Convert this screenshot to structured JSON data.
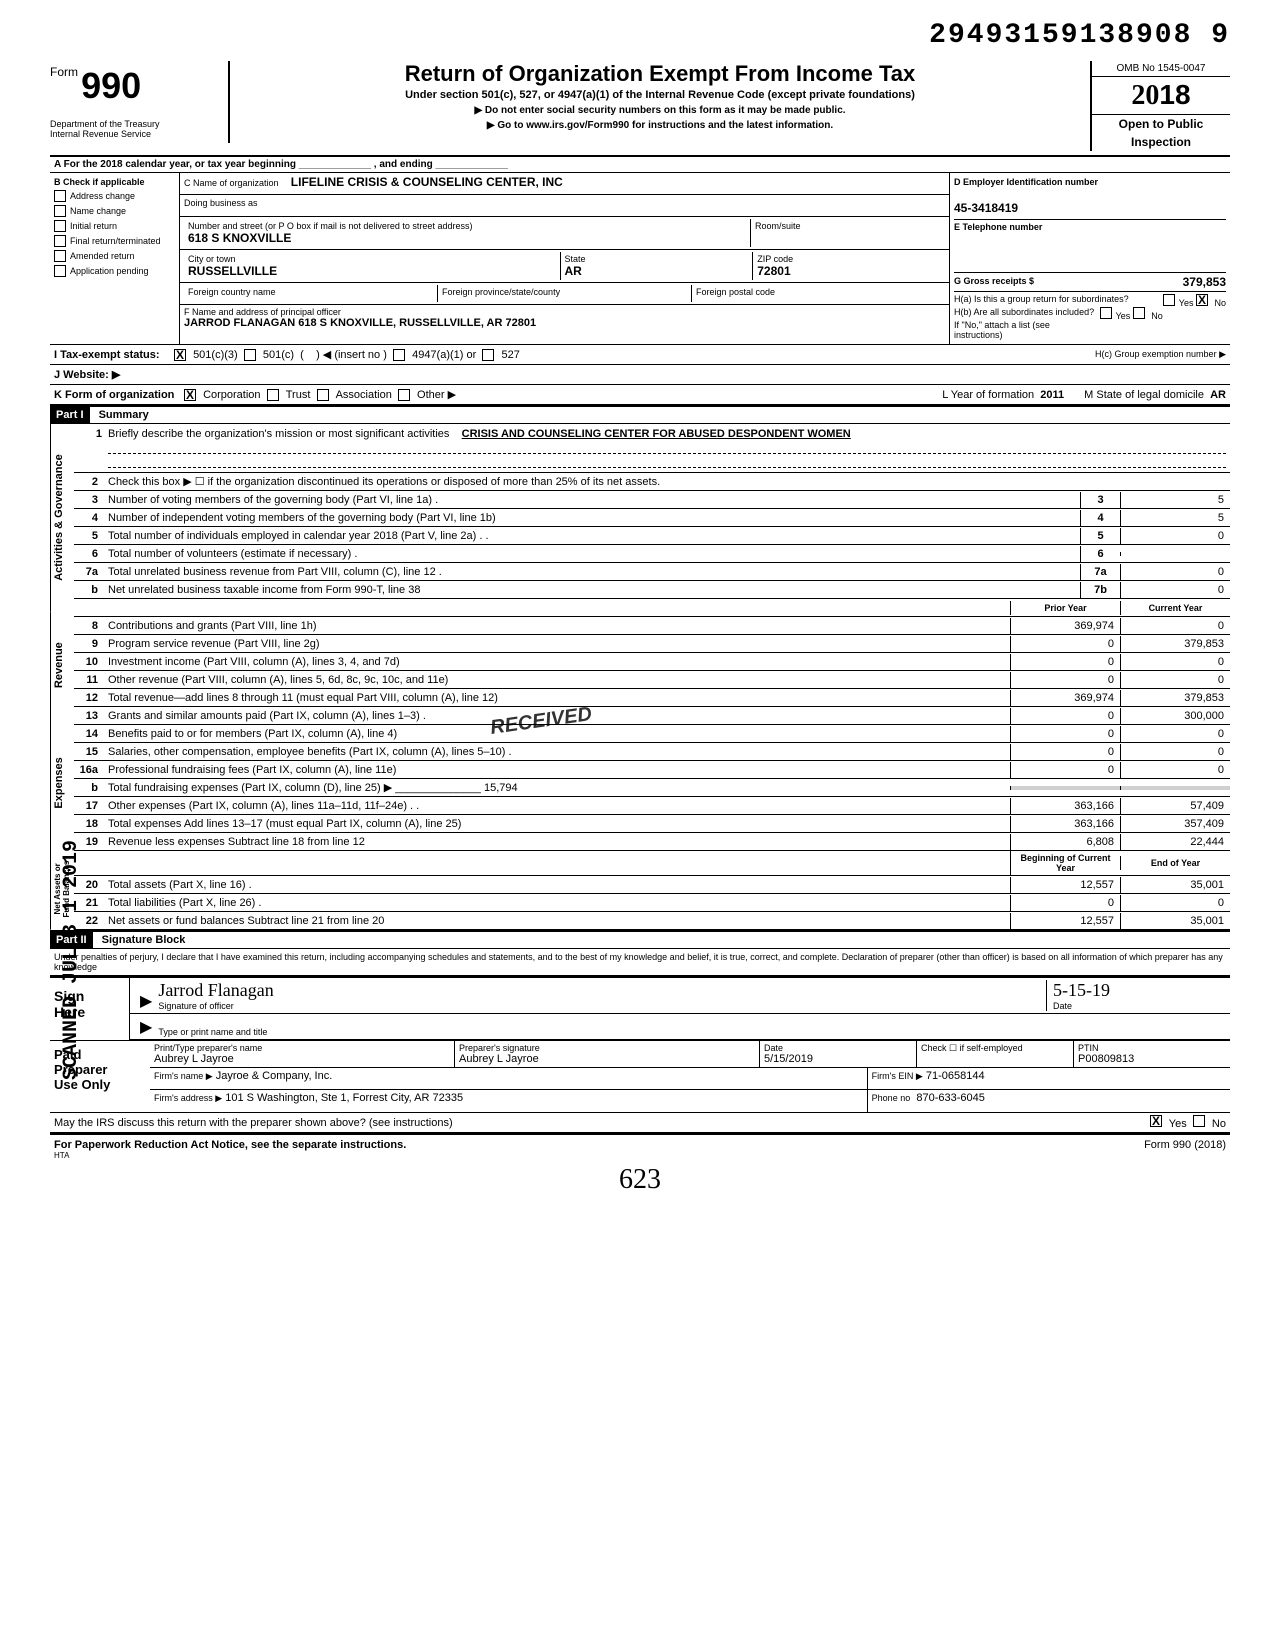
{
  "doc_id": "29493159138908  9",
  "form": {
    "number": "990",
    "form_word": "Form",
    "title": "Return of Organization Exempt From Income Tax",
    "subtitle": "Under section 501(c), 527, or 4947(a)(1) of the Internal Revenue Code (except private foundations)",
    "instr1": "▶  Do not enter social security numbers on this form as it may be made public.",
    "instr2": "▶  Go to www.irs.gov/Form990 for instructions and the latest information.",
    "dept": "Department of the Treasury\nInternal Revenue Service",
    "omb": "OMB No 1545-0047",
    "year": "2018",
    "open": "Open to Public",
    "inspection": "Inspection"
  },
  "rowA": "A   For the 2018 calendar year, or tax year beginning _____________ , and ending _____________",
  "colB": {
    "header": "B  Check if applicable",
    "items": [
      "Address change",
      "Name change",
      "Initial return",
      "Final return/terminated",
      "Amended return",
      "Application pending"
    ]
  },
  "colC": {
    "name_label": "C  Name of organization",
    "name": "LIFELINE CRISIS & COUNSELING CENTER, INC",
    "dba_label": "Doing business as",
    "street_label": "Number and street (or P O box if mail is not delivered to street address)",
    "street": "618 S KNOXVILLE",
    "room_label": "Room/suite",
    "city_label": "City or town",
    "city": "RUSSELLVILLE",
    "state_label": "State",
    "state": "AR",
    "zip_label": "ZIP code",
    "zip": "72801",
    "foreign_country_label": "Foreign country name",
    "foreign_prov_label": "Foreign province/state/county",
    "foreign_postal_label": "Foreign postal code",
    "officer_label": "F  Name and address of principal officer",
    "officer": "JARROD FLANAGAN 618 S KNOXVILLE, RUSSELLVILLE, AR  72801"
  },
  "colD": {
    "ein_label": "D   Employer Identification number",
    "ein": "45-3418419",
    "phone_label": "E   Telephone number",
    "gross_label": "G   Gross receipts $",
    "gross": "379,853",
    "ha_label": "H(a) Is this a group return for subordinates?",
    "hb_label": "H(b) Are all subordinates included?",
    "hno_instr": "If \"No,\" attach a list (see instructions)",
    "hc_label": "H(c) Group exemption number ▶"
  },
  "lineI": {
    "label": "I   Tax-exempt status:",
    "opt1": "501(c)(3)",
    "opt2": "501(c)",
    "insert": "◀ (insert no )",
    "opt3": "4947(a)(1) or",
    "opt4": "527"
  },
  "lineJ": "J  Website: ▶",
  "lineK": {
    "label": "K  Form of organization",
    "opts": [
      "Corporation",
      "Trust",
      "Association",
      "Other ▶"
    ],
    "year_label": "L Year of formation",
    "year": "2011",
    "state_label": "M State of legal domicile",
    "state": "AR"
  },
  "part1": {
    "header": "Part I",
    "title": "Summary",
    "mission_label": "Briefly describe the organization's mission or most significant activities",
    "mission": "CRISIS AND COUNSELING CENTER FOR ABUSED DESPONDENT WOMEN",
    "line2": "Check this box ▶ ☐ if the organization discontinued its operations or disposed of more than 25% of its net assets.",
    "rows_simple": [
      {
        "n": "3",
        "t": "Number of voting members of the governing body (Part VI, line 1a) .",
        "b": "3",
        "v": "5"
      },
      {
        "n": "4",
        "t": "Number of independent voting members of the governing body (Part VI, line 1b)",
        "b": "4",
        "v": "5"
      },
      {
        "n": "5",
        "t": "Total number of individuals employed in calendar year 2018 (Part V, line 2a) .  .",
        "b": "5",
        "v": "0"
      },
      {
        "n": "6",
        "t": "Total number of volunteers (estimate if necessary) .",
        "b": "6",
        "v": ""
      },
      {
        "n": "7a",
        "t": "Total unrelated business revenue from Part VIII, column (C), line 12 .",
        "b": "7a",
        "v": "0"
      },
      {
        "n": "b",
        "t": "Net unrelated business taxable income from Form 990-T, line 38",
        "b": "7b",
        "v": "0"
      }
    ],
    "col_prior": "Prior Year",
    "col_current": "Current Year",
    "rows_two": [
      {
        "n": "8",
        "t": "Contributions and grants (Part VIII, line 1h)",
        "p": "369,974",
        "c": "0"
      },
      {
        "n": "9",
        "t": "Program service revenue (Part VIII, line 2g)",
        "p": "0",
        "c": "379,853"
      },
      {
        "n": "10",
        "t": "Investment income (Part VIII, column (A), lines 3, 4, and 7d)",
        "p": "0",
        "c": "0"
      },
      {
        "n": "11",
        "t": "Other revenue (Part VIII, column (A), lines 5, 6d, 8c, 9c, 10c, and 11e)",
        "p": "0",
        "c": "0"
      },
      {
        "n": "12",
        "t": "Total revenue—add lines 8 through 11 (must equal Part VIII, column (A), line 12)",
        "p": "369,974",
        "c": "379,853"
      },
      {
        "n": "13",
        "t": "Grants and similar amounts paid (Part IX, column (A), lines 1–3) .",
        "p": "0",
        "c": "300,000"
      },
      {
        "n": "14",
        "t": "Benefits paid to or for members (Part IX, column (A), line 4)",
        "p": "0",
        "c": "0"
      },
      {
        "n": "15",
        "t": "Salaries, other compensation, employee benefits (Part IX, column (A), lines 5–10) .",
        "p": "0",
        "c": "0"
      },
      {
        "n": "16a",
        "t": "Professional fundraising fees (Part IX, column (A), line 11e)",
        "p": "0",
        "c": "0"
      },
      {
        "n": "b",
        "t": "Total fundraising expenses (Part IX, column (D), line 25)  ▶ ______________ 15,794",
        "p": "",
        "c": "",
        "grey": true
      },
      {
        "n": "17",
        "t": "Other expenses (Part IX, column (A), lines 11a–11d, 11f–24e) .  .",
        "p": "363,166",
        "c": "57,409"
      },
      {
        "n": "18",
        "t": "Total expenses  Add lines 13–17 (must equal Part IX, column (A), line 25)",
        "p": "363,166",
        "c": "357,409"
      },
      {
        "n": "19",
        "t": "Revenue less expenses  Subtract line 18 from line 12",
        "p": "6,808",
        "c": "22,444"
      }
    ],
    "col_begin": "Beginning of Current Year",
    "col_end": "End of Year",
    "rows_net": [
      {
        "n": "20",
        "t": "Total assets (Part X, line 16) .",
        "p": "12,557",
        "c": "35,001"
      },
      {
        "n": "21",
        "t": "Total liabilities (Part X, line 26) .",
        "p": "0",
        "c": "0"
      },
      {
        "n": "22",
        "t": "Net assets or fund balances  Subtract line 21 from line 20",
        "p": "12,557",
        "c": "35,001"
      }
    ],
    "side_labels": [
      "Activities & Governance",
      "Revenue",
      "Expenses",
      "Net Assets or\nFund Balances"
    ]
  },
  "part2": {
    "header": "Part II",
    "title": "Signature Block",
    "decl": "Under penalties of perjury, I declare that I have examined this return, including accompanying schedules and statements, and to the best of my knowledge and belief, it is true, correct, and complete. Declaration of preparer (other than officer) is based on all information of which preparer has any knowledge"
  },
  "sign": {
    "here": "Sign\nHere",
    "sig_label": "Signature of officer",
    "sig_name": "Jarrod  Flanagan",
    "date_label": "Date",
    "date": "5-15-19",
    "name_label": "Type or print name and title"
  },
  "paid": {
    "label": "Paid\nPreparer\nUse Only",
    "print_label": "Print/Type preparer's name",
    "print_name": "Aubrey L Jayroe",
    "sig_label": "Preparer's signature",
    "sig_name": "Aubrey L Jayroe",
    "date_label": "Date",
    "date": "5/15/2019",
    "check_label": "Check ☐ if self-employed",
    "ptin_label": "PTIN",
    "ptin": "P00809813",
    "firm_name_label": "Firm's name  ▶",
    "firm_name": "Jayroe & Company, Inc.",
    "firm_ein_label": "Firm's EIN ▶",
    "firm_ein": "71-0658144",
    "firm_addr_label": "Firm's address ▶",
    "firm_addr": "101 S Washington, Ste 1, Forrest City, AR 72335",
    "phone_label": "Phone no",
    "phone": "870-633-6045"
  },
  "footer": {
    "discuss": "May the IRS discuss this return with the preparer shown above? (see instructions)",
    "pra": "For Paperwork Reduction Act Notice, see the separate instructions.",
    "hta": "HTA",
    "form": "Form 990 (2018)"
  },
  "stamps": {
    "received": "RECEIVED",
    "scanned": "SCANNED JUL 3 1 2019",
    "handnum": "623"
  },
  "colors": {
    "bg": "#ffffff",
    "text": "#000000"
  }
}
